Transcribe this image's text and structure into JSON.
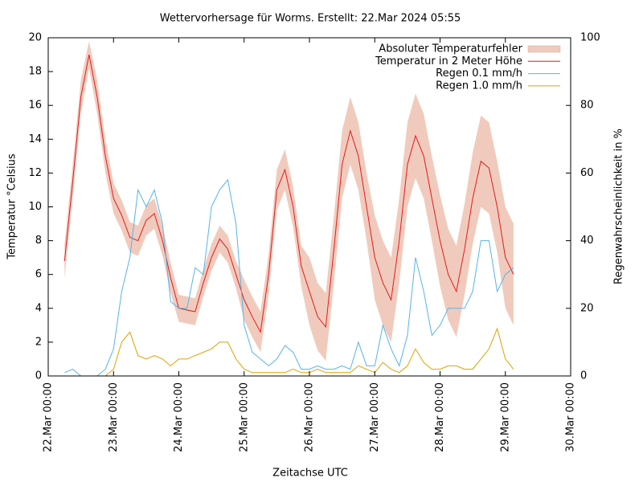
{
  "chart_data": {
    "type": "line",
    "title": "Wettervorhersage für Worms. Erstellt: 22.Mar 2024 05:55",
    "x_label": "Zeitachse UTC",
    "y_label": "Temperatur °Celsius",
    "y2_label": "Regenwahrscheinlichkeit in %",
    "x": [
      "22.Mar 06:00",
      "22.Mar 09:00",
      "22.Mar 12:00",
      "22.Mar 15:00",
      "22.Mar 18:00",
      "22.Mar 21:00",
      "23.Mar 00:00",
      "23.Mar 03:00",
      "23.Mar 06:00",
      "23.Mar 09:00",
      "23.Mar 12:00",
      "23.Mar 15:00",
      "23.Mar 18:00",
      "23.Mar 21:00",
      "24.Mar 00:00",
      "24.Mar 03:00",
      "24.Mar 06:00",
      "24.Mar 09:00",
      "24.Mar 12:00",
      "24.Mar 15:00",
      "24.Mar 18:00",
      "24.Mar 21:00",
      "25.Mar 00:00",
      "25.Mar 03:00",
      "25.Mar 06:00",
      "25.Mar 09:00",
      "25.Mar 12:00",
      "25.Mar 15:00",
      "25.Mar 18:00",
      "25.Mar 21:00",
      "26.Mar 00:00",
      "26.Mar 03:00",
      "26.Mar 06:00",
      "26.Mar 09:00",
      "26.Mar 12:00",
      "26.Mar 15:00",
      "26.Mar 18:00",
      "26.Mar 21:00",
      "27.Mar 00:00",
      "27.Mar 03:00",
      "27.Mar 06:00",
      "27.Mar 09:00",
      "27.Mar 12:00",
      "27.Mar 15:00",
      "27.Mar 18:00",
      "27.Mar 21:00",
      "28.Mar 00:00",
      "28.Mar 03:00",
      "28.Mar 06:00",
      "28.Mar 09:00",
      "28.Mar 12:00",
      "28.Mar 15:00",
      "28.Mar 18:00",
      "28.Mar 21:00",
      "29.Mar 00:00",
      "29.Mar 03:00"
    ],
    "series": [
      {
        "name": "Absoluter Temperaturfehler",
        "color": "#f0cbbd",
        "upper": [
          7.8,
          12.5,
          17.5,
          19.8,
          17.5,
          14.0,
          11.4,
          10.4,
          9.1,
          8.9,
          10.1,
          10.5,
          8.9,
          6.7,
          4.8,
          4.7,
          4.6,
          6.3,
          7.8,
          8.9,
          8.3,
          6.8,
          5.7,
          4.7,
          3.8,
          7.2,
          12.2,
          13.4,
          11.2,
          7.7,
          7.0,
          5.5,
          4.9,
          9.5,
          14.5,
          16.5,
          15.0,
          12.0,
          9.5,
          8.0,
          7.0,
          10.5,
          15.0,
          16.7,
          15.5,
          13.0,
          10.7,
          8.7,
          7.7,
          10.2,
          13.2,
          15.4,
          15.0,
          12.7,
          10.0,
          9.0
        ],
        "lower": [
          5.8,
          10.5,
          15.5,
          18.2,
          15.5,
          12.0,
          9.6,
          8.6,
          7.3,
          7.1,
          8.3,
          8.7,
          7.1,
          4.9,
          3.2,
          3.1,
          3.0,
          4.7,
          6.2,
          7.3,
          6.7,
          5.2,
          3.3,
          2.3,
          1.4,
          4.8,
          9.8,
          11.0,
          8.8,
          5.3,
          3.0,
          1.5,
          0.9,
          5.5,
          10.5,
          12.5,
          11.0,
          8.0,
          4.5,
          3.0,
          2.0,
          5.5,
          10.0,
          11.7,
          10.5,
          8.0,
          5.3,
          3.3,
          2.3,
          4.8,
          7.8,
          10.0,
          9.6,
          7.3,
          4.0,
          3.0
        ]
      },
      {
        "name": "Temperatur in 2 Meter Höhe",
        "color": "#e41a1c",
        "values": [
          6.8,
          11.5,
          16.5,
          19.0,
          16.5,
          13.0,
          10.5,
          9.5,
          8.2,
          8.0,
          9.2,
          9.6,
          8.0,
          5.8,
          4.0,
          3.9,
          3.8,
          5.5,
          7.0,
          8.1,
          7.5,
          6.0,
          4.5,
          3.5,
          2.6,
          6.0,
          11.0,
          12.2,
          10.0,
          6.5,
          5.0,
          3.5,
          2.9,
          7.5,
          12.5,
          14.5,
          13.0,
          10.0,
          7.0,
          5.5,
          4.5,
          8.0,
          12.5,
          14.2,
          13.0,
          10.5,
          8.0,
          6.0,
          5.0,
          7.5,
          10.5,
          12.7,
          12.3,
          10.0,
          7.0,
          6.0
        ]
      },
      {
        "name": "Regen 0.1 mm/h",
        "color": "#56b4e9",
        "axis": "y2",
        "values": [
          1,
          2,
          0,
          0,
          0,
          2,
          8,
          25,
          35,
          55,
          50,
          55,
          45,
          22,
          20,
          20,
          32,
          30,
          50,
          55,
          58,
          45,
          15,
          7,
          5,
          3,
          5,
          9,
          7,
          2,
          2,
          3,
          2,
          2,
          3,
          2,
          10,
          3,
          3,
          15,
          8,
          3,
          12,
          35,
          25,
          12,
          15,
          20,
          20,
          20,
          25,
          40,
          40,
          25,
          30,
          32
        ]
      },
      {
        "name": "Regen 1.0 mm/h",
        "color": "#e0a000",
        "axis": "y2",
        "values": [
          0,
          0,
          0,
          0,
          0,
          0,
          2,
          10,
          13,
          6,
          5,
          6,
          5,
          3,
          5,
          5,
          6,
          7,
          8,
          10,
          10,
          5,
          2,
          1,
          1,
          1,
          1,
          1,
          2,
          1,
          1,
          2,
          1,
          1,
          1,
          1,
          3,
          2,
          1,
          4,
          2,
          1,
          3,
          8,
          4,
          2,
          2,
          3,
          3,
          2,
          2,
          5,
          8,
          14,
          5,
          2
        ]
      }
    ],
    "xlim": [
      "22.Mar 00:00",
      "30.Mar 00:00"
    ],
    "xticks": [
      "22.Mar 00:00",
      "23.Mar 00:00",
      "24.Mar 00:00",
      "25.Mar 00:00",
      "26.Mar 00:00",
      "27.Mar 00:00",
      "28.Mar 00:00",
      "29.Mar 00:00",
      "30.Mar 00:00"
    ],
    "ylim": [
      0,
      20
    ],
    "yticks": [
      0,
      2,
      4,
      6,
      8,
      10,
      12,
      14,
      16,
      18,
      20
    ],
    "y2lim": [
      0,
      100
    ],
    "y2ticks": [
      0,
      20,
      40,
      60,
      80,
      100
    ],
    "legend": "top-right"
  }
}
